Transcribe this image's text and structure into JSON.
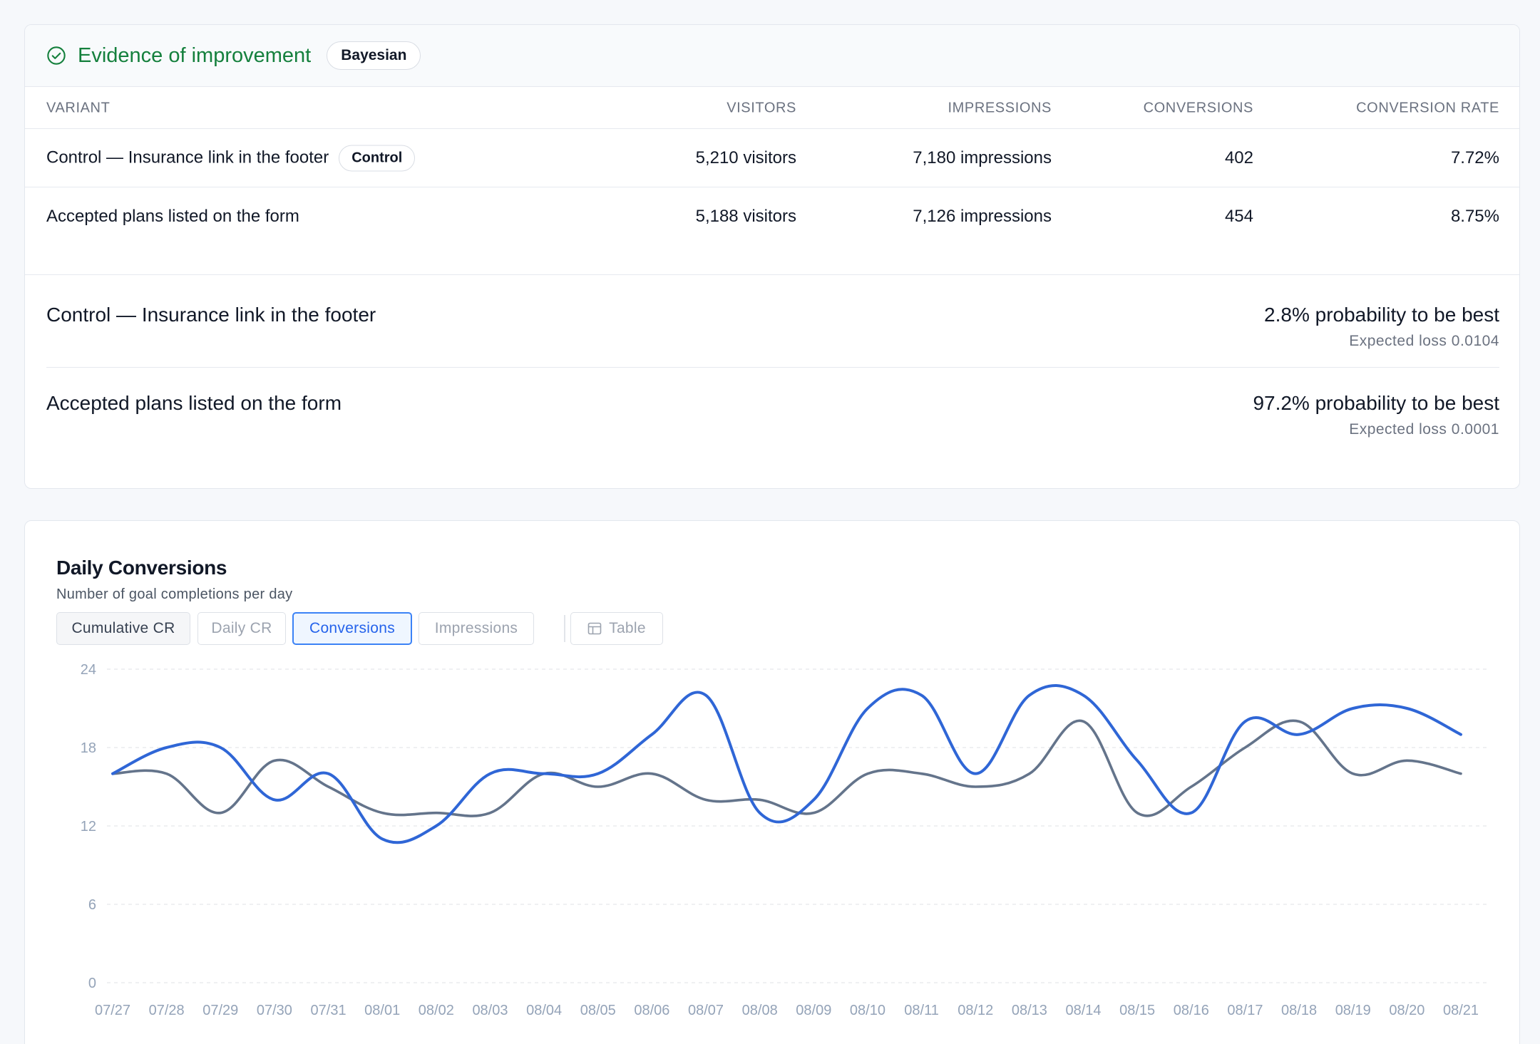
{
  "results": {
    "title": "Evidence of improvement",
    "method_badge": "Bayesian",
    "columns": [
      "VARIANT",
      "VISITORS",
      "IMPRESSIONS",
      "CONVERSIONS",
      "CONVERSION RATE"
    ],
    "rows": [
      {
        "name": "Control — Insurance link in the footer",
        "badge": "Control",
        "visitors": "5,210 visitors",
        "impressions": "7,180 impressions",
        "conversions": "402",
        "rate": "7.72%"
      },
      {
        "name": "Accepted plans listed on the form",
        "visitors": "5,188 visitors",
        "impressions": "7,126 impressions",
        "conversions": "454",
        "rate": "8.75%"
      }
    ],
    "probabilities": [
      {
        "name": "Control — Insurance link in the footer",
        "probability": "2.8% probability to be best",
        "loss": "Expected loss 0.0104"
      },
      {
        "name": "Accepted plans listed on the form",
        "probability": "97.2% probability to be best",
        "loss": "Expected loss 0.0001"
      }
    ],
    "colors": {
      "positive": "#15803d"
    }
  },
  "chart": {
    "title": "Daily Conversions",
    "subtitle": "Number of goal completions per day",
    "tabs": [
      {
        "label": "Cumulative CR",
        "state": "muted"
      },
      {
        "label": "Daily CR",
        "state": "default"
      },
      {
        "label": "Conversions",
        "state": "active"
      },
      {
        "label": "Impressions",
        "state": "default"
      },
      {
        "label": "Table",
        "state": "default",
        "icon": "table-icon"
      }
    ]
  },
  "chart_data": {
    "type": "line",
    "x": [
      "07/27",
      "07/28",
      "07/29",
      "07/30",
      "07/31",
      "08/01",
      "08/02",
      "08/03",
      "08/04",
      "08/05",
      "08/06",
      "08/07",
      "08/08",
      "08/09",
      "08/10",
      "08/11",
      "08/12",
      "08/13",
      "08/14",
      "08/15",
      "08/16",
      "08/17",
      "08/18",
      "08/19",
      "08/20",
      "08/21"
    ],
    "series": [
      {
        "color": "#2f66d6",
        "values": [
          16,
          18,
          18,
          14,
          16,
          11,
          12,
          16,
          16,
          16,
          19,
          22,
          13,
          14,
          21,
          22,
          16,
          22,
          22,
          17,
          13,
          20,
          19,
          21,
          21,
          19
        ]
      },
      {
        "color": "#64748b",
        "values": [
          16,
          16,
          13,
          17,
          15,
          13,
          13,
          13,
          16,
          15,
          16,
          14,
          14,
          13,
          16,
          16,
          15,
          16,
          20,
          13,
          15,
          18,
          20,
          16,
          17,
          16
        ]
      }
    ],
    "ylim": [
      0,
      24
    ],
    "yticks": [
      0,
      6,
      12,
      18,
      24
    ],
    "grid": true
  }
}
